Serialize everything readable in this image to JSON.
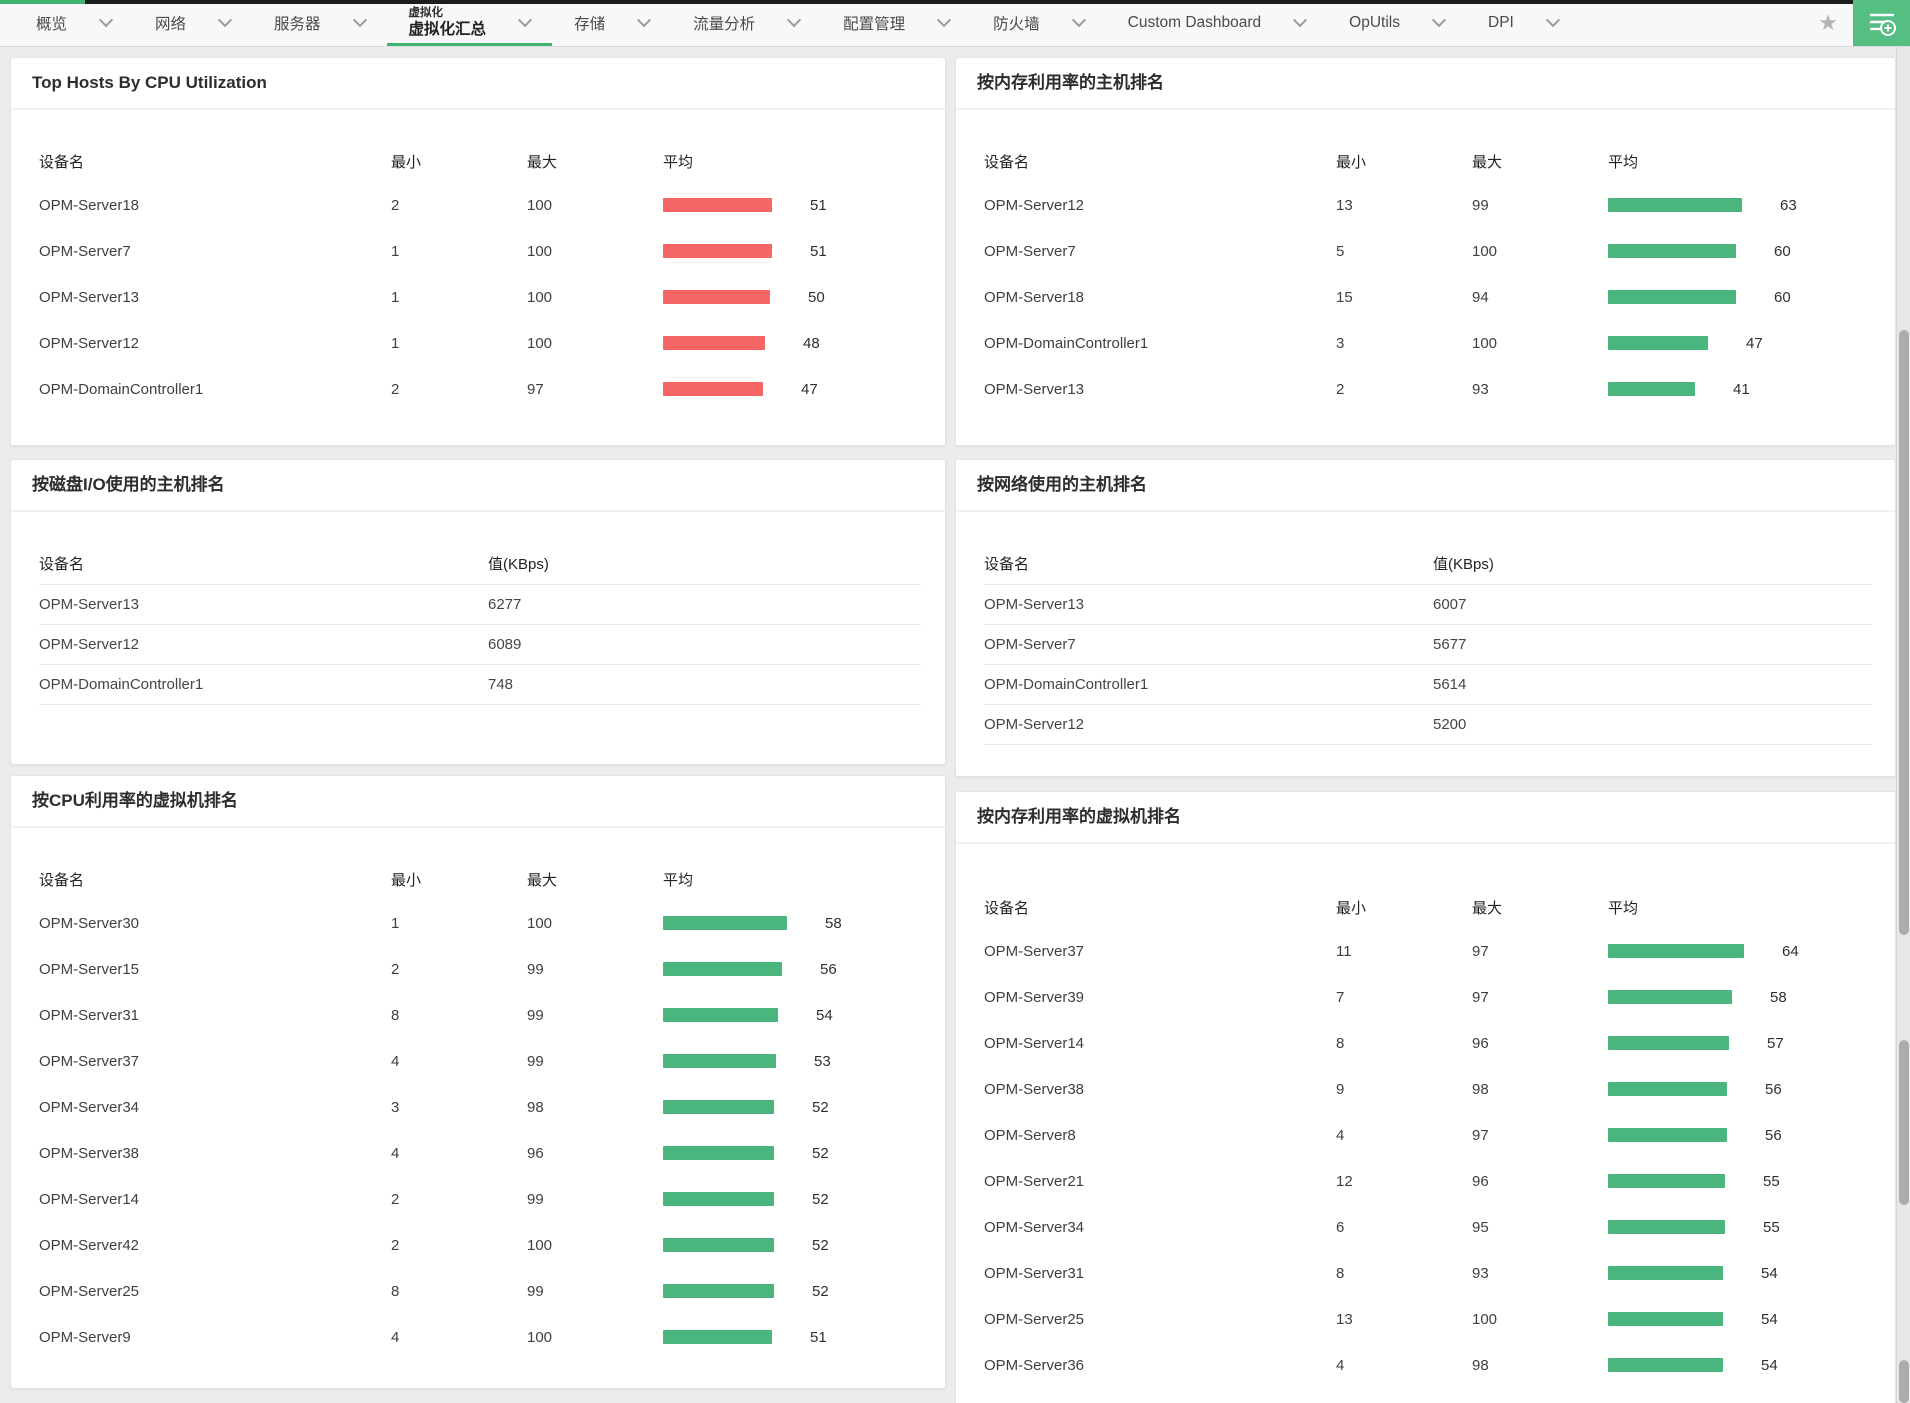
{
  "topbar": {
    "tabs": [
      {
        "label": "概览"
      },
      {
        "label": "网络"
      },
      {
        "label": "服务器"
      },
      {
        "superlabel": "虚拟化",
        "label": "虚拟化汇总",
        "active": true
      },
      {
        "label": "存储"
      },
      {
        "label": "流量分析"
      },
      {
        "label": "配置管理"
      },
      {
        "label": "防火墙"
      },
      {
        "label": "Custom Dashboard"
      },
      {
        "label": "OpUtils"
      },
      {
        "label": "DPI"
      }
    ],
    "star_icon": "favorite-star",
    "widget_menu_icon": "list-add"
  },
  "colors": {
    "accent_green": "#3db36f",
    "button_green": "#55bf83",
    "bar_red": "#f56565",
    "bar_green": "#4ab57d"
  },
  "panels": {
    "p1": {
      "title": "Top Hosts By CPU Utilization",
      "columns": [
        "设备名",
        "最小",
        "最大",
        "平均"
      ],
      "bar_color": "#f56565",
      "rows": [
        {
          "name": "OPM-Server18",
          "min": 2,
          "max": 100,
          "avg": 51
        },
        {
          "name": "OPM-Server7",
          "min": 1,
          "max": 100,
          "avg": 51
        },
        {
          "name": "OPM-Server13",
          "min": 1,
          "max": 100,
          "avg": 50
        },
        {
          "name": "OPM-Server12",
          "min": 1,
          "max": 100,
          "avg": 48
        },
        {
          "name": "OPM-DomainController1",
          "min": 2,
          "max": 97,
          "avg": 47
        }
      ]
    },
    "p2": {
      "title": "按内存利用率的主机排名",
      "columns": [
        "设备名",
        "最小",
        "最大",
        "平均"
      ],
      "bar_color": "#4ab57d",
      "rows": [
        {
          "name": "OPM-Server12",
          "min": 13,
          "max": 99,
          "avg": 63
        },
        {
          "name": "OPM-Server7",
          "min": 5,
          "max": 100,
          "avg": 60
        },
        {
          "name": "OPM-Server18",
          "min": 15,
          "max": 94,
          "avg": 60
        },
        {
          "name": "OPM-DomainController1",
          "min": 3,
          "max": 100,
          "avg": 47
        },
        {
          "name": "OPM-Server13",
          "min": 2,
          "max": 93,
          "avg": 41
        }
      ]
    },
    "p3": {
      "title": "按磁盘I/O使用的主机排名",
      "columns": [
        "设备名",
        "值(KBps)"
      ],
      "rows": [
        {
          "name": "OPM-Server13",
          "value": 6277
        },
        {
          "name": "OPM-Server12",
          "value": 6089
        },
        {
          "name": "OPM-DomainController1",
          "value": 748
        }
      ]
    },
    "p4": {
      "title": "按网络使用的主机排名",
      "columns": [
        "设备名",
        "值(KBps)"
      ],
      "rows": [
        {
          "name": "OPM-Server13",
          "value": 6007
        },
        {
          "name": "OPM-Server7",
          "value": 5677
        },
        {
          "name": "OPM-DomainController1",
          "value": 5614
        },
        {
          "name": "OPM-Server12",
          "value": 5200
        }
      ]
    },
    "p5": {
      "title": "按CPU利用率的虚拟机排名",
      "columns": [
        "设备名",
        "最小",
        "最大",
        "平均"
      ],
      "bar_color": "#4ab57d",
      "rows": [
        {
          "name": "OPM-Server30",
          "min": 1,
          "max": 100,
          "avg": 58
        },
        {
          "name": "OPM-Server15",
          "min": 2,
          "max": 99,
          "avg": 56
        },
        {
          "name": "OPM-Server31",
          "min": 8,
          "max": 99,
          "avg": 54
        },
        {
          "name": "OPM-Server37",
          "min": 4,
          "max": 99,
          "avg": 53
        },
        {
          "name": "OPM-Server34",
          "min": 3,
          "max": 98,
          "avg": 52
        },
        {
          "name": "OPM-Server38",
          "min": 4,
          "max": 96,
          "avg": 52
        },
        {
          "name": "OPM-Server14",
          "min": 2,
          "max": 99,
          "avg": 52
        },
        {
          "name": "OPM-Server42",
          "min": 2,
          "max": 100,
          "avg": 52
        },
        {
          "name": "OPM-Server25",
          "min": 8,
          "max": 99,
          "avg": 52
        },
        {
          "name": "OPM-Server9",
          "min": 4,
          "max": 100,
          "avg": 51
        }
      ]
    },
    "p6": {
      "title": "按内存利用率的虚拟机排名",
      "columns": [
        "设备名",
        "最小",
        "最大",
        "平均"
      ],
      "bar_color": "#4ab57d",
      "rows": [
        {
          "name": "OPM-Server37",
          "min": 11,
          "max": 97,
          "avg": 64
        },
        {
          "name": "OPM-Server39",
          "min": 7,
          "max": 97,
          "avg": 58
        },
        {
          "name": "OPM-Server14",
          "min": 8,
          "max": 96,
          "avg": 57
        },
        {
          "name": "OPM-Server38",
          "min": 9,
          "max": 98,
          "avg": 56
        },
        {
          "name": "OPM-Server8",
          "min": 4,
          "max": 97,
          "avg": 56
        },
        {
          "name": "OPM-Server21",
          "min": 12,
          "max": 96,
          "avg": 55
        },
        {
          "name": "OPM-Server34",
          "min": 6,
          "max": 95,
          "avg": 55
        },
        {
          "name": "OPM-Server31",
          "min": 8,
          "max": 93,
          "avg": 54
        },
        {
          "name": "OPM-Server25",
          "min": 13,
          "max": 100,
          "avg": 54
        },
        {
          "name": "OPM-Server36",
          "min": 4,
          "max": 98,
          "avg": 54
        }
      ]
    }
  }
}
